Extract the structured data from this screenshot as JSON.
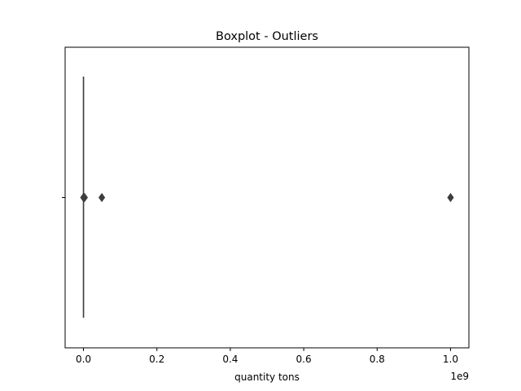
{
  "chart_data": {
    "type": "boxplot",
    "title": "Boxplot - Outliers",
    "xlabel": "quantity tons",
    "ylabel": "",
    "x_offset_label": "1e9",
    "xlim": [
      -50000000,
      1050000000
    ],
    "x_ticks": [
      0,
      200000000,
      400000000,
      600000000,
      800000000,
      1000000000
    ],
    "x_tick_labels": [
      "0.0",
      "0.2",
      "0.4",
      "0.6",
      "0.8",
      "1.0"
    ],
    "grid": false,
    "box": {
      "q1": 0,
      "median": 0,
      "q3": 0,
      "whisker_low": 0,
      "whisker_high": 0
    },
    "outliers": [
      0,
      1000000,
      2000000,
      3000000,
      50000000,
      1000000000
    ],
    "colors": {
      "box": "#3d3d3d",
      "outlier": "#3d3d3d",
      "axes": "#000000"
    }
  }
}
